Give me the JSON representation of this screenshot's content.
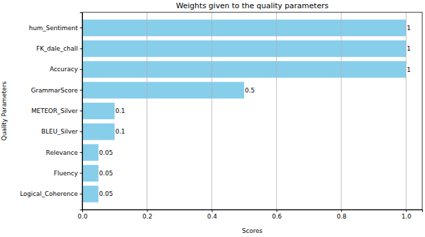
{
  "chart_data": {
    "type": "bar",
    "title": "Weights given to the quality parameters",
    "x_label": "Scores",
    "y_label": "Quality Parameters",
    "orientation": "horizontal",
    "categories": [
      "hum_Sentiment",
      "FK_dale_chall",
      "Accuracy",
      "GrammarScore",
      "METEOR_Silver",
      "BLEU_Silver",
      "Relevance",
      "Fluency",
      "Logical_Coherence"
    ],
    "values": [
      1,
      1,
      1,
      0.5,
      0.1,
      0.1,
      0.05,
      0.05,
      0.05
    ],
    "color": "#87ceeb",
    "xlim": [
      0,
      1.05
    ],
    "xticks": [
      {
        "value": 0,
        "label": "0.0"
      },
      0.2,
      0.4,
      0.6,
      0.8,
      {
        "value": 1,
        "label": "1.0"
      }
    ],
    "grid": true,
    "data_labels": true
  }
}
